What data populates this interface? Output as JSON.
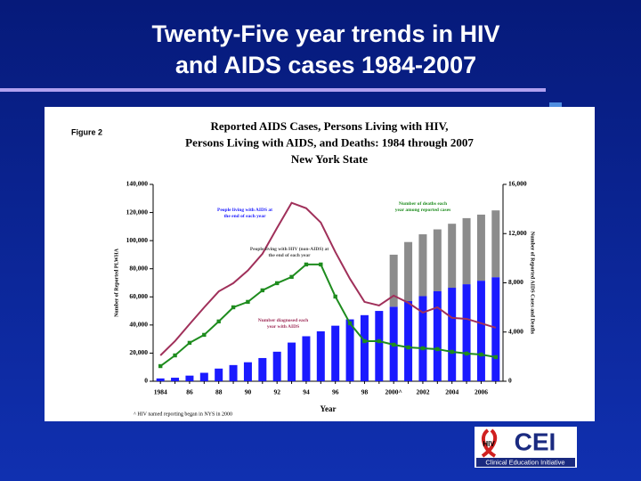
{
  "slide_title": [
    "Twenty-Five year trends in HIV",
    "and AIDS cases 1984-2007"
  ],
  "figure_label": "Figure 2",
  "footnote": "^ HIV named reporting began in NYS in 2000",
  "logo": {
    "badge": "HIV",
    "name": "CEI",
    "tagline": "Clinical Education Initiative"
  },
  "chart_data": {
    "type": "bar",
    "title": [
      "Reported AIDS Cases, Persons Living with HIV,",
      "Persons Living with AIDS, and Deaths: 1984 through 2007",
      "New York State"
    ],
    "x_label": "Year",
    "y_label": "Number of Reported PLWHA",
    "y2_label": "Number of Reported AIDS Cases and Deaths",
    "categories": [
      "1984",
      null,
      "86",
      null,
      "88",
      null,
      "90",
      null,
      "92",
      null,
      "94",
      null,
      "96",
      null,
      "98",
      null,
      "2000^",
      null,
      "2002",
      null,
      "2004",
      null,
      "2006",
      null
    ],
    "ylim": [
      0,
      140000
    ],
    "yticks": [
      0,
      {
        "value": 20000,
        "label": "20,000"
      },
      {
        "value": 40000,
        "label": "40,000"
      },
      {
        "value": 60000,
        "label": "60,000"
      },
      {
        "value": 80000,
        "label": "80,000"
      },
      {
        "value": 100000,
        "label": "100,000"
      },
      {
        "value": 120000,
        "label": "120,000"
      },
      {
        "value": 140000,
        "label": "140,000"
      }
    ],
    "y2lim": [
      0,
      16000
    ],
    "y2ticks": [
      0,
      {
        "value": 4000,
        "label": "4,000"
      },
      {
        "value": 8000,
        "label": "8,000"
      },
      {
        "value": 12000,
        "label": "12,000"
      },
      {
        "value": 16000,
        "label": "16,000"
      }
    ],
    "series": [
      {
        "name": "People living with AIDS at the end of each year",
        "type": "bar",
        "color": "#1a1aff",
        "values": [
          2000,
          2500,
          4000,
          6000,
          9000,
          11500,
          13500,
          16500,
          21000,
          27500,
          32000,
          35500,
          39500,
          44000,
          47000,
          50000,
          53000,
          57000,
          60500,
          64000,
          66500,
          69000,
          71500,
          74000
        ]
      },
      {
        "name": "People living with HIV (non-AIDS) at the end of each year",
        "type": "bar",
        "color": "#8c8c8c",
        "values": [
          null,
          null,
          null,
          null,
          null,
          null,
          null,
          null,
          null,
          null,
          null,
          null,
          null,
          null,
          null,
          null,
          37000,
          42000,
          44000,
          44000,
          45500,
          47000,
          47000,
          47500
        ]
      },
      {
        "name": "Number diagnosed each year with AIDS",
        "type": "line",
        "axis": "y2",
        "color": "#a0305a",
        "values": [
          2100,
          3260,
          4640,
          6000,
          7300,
          7970,
          9000,
          10360,
          12460,
          14500,
          14060,
          12900,
          10500,
          8330,
          6450,
          6160,
          6960,
          6380,
          5580,
          6010,
          5150,
          5070,
          4710,
          4350
        ]
      },
      {
        "name": "Number of deaths each year among reported cases",
        "type": "line",
        "axis": "y2",
        "markers": true,
        "color": "#1e8c1e",
        "values": [
          1230,
          2100,
          3120,
          3770,
          4860,
          6010,
          6450,
          7390,
          7970,
          8480,
          9490,
          9490,
          6880,
          4710,
          3260,
          3260,
          2970,
          2750,
          2680,
          2610,
          2390,
          2250,
          2170,
          1960
        ]
      }
    ]
  }
}
